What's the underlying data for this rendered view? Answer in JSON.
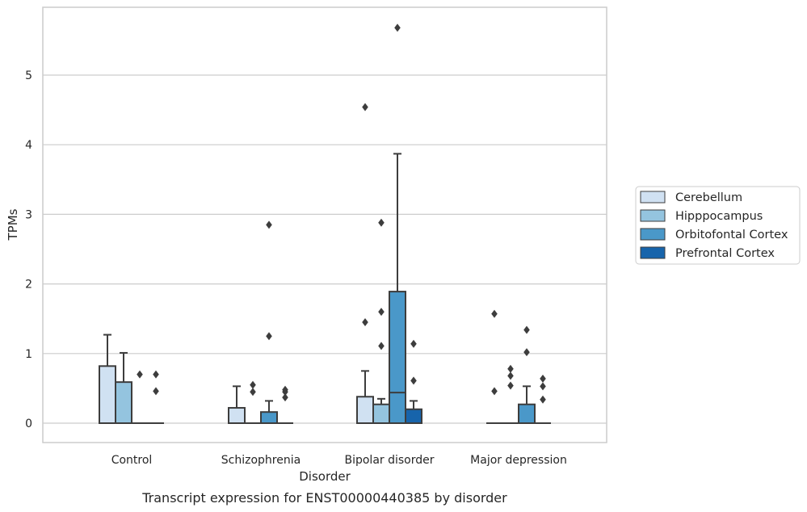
{
  "chart_data": {
    "type": "box",
    "caption": "Transcript expression for ENST00000440385 by disorder",
    "xlabel": "Disorder",
    "ylabel": "TPMs",
    "ylim": [
      -0.28,
      5.98
    ],
    "yticks": [
      0,
      1,
      2,
      3,
      4,
      5
    ],
    "grid": "horizontal",
    "legend_position": "right",
    "categories": [
      "Control",
      "Schizophrenia",
      "Bipolar disorder",
      "Major depression"
    ],
    "series": [
      {
        "name": "Cerebellum",
        "color": "#d0e1f2",
        "boxes": [
          {
            "q1": 0,
            "median": 0,
            "q3": 0.82,
            "whislo": 0,
            "whishi": 1.27,
            "fliers": []
          },
          {
            "q1": 0,
            "median": 0,
            "q3": 0.22,
            "whislo": 0,
            "whishi": 0.53,
            "fliers": []
          },
          {
            "q1": 0,
            "median": 0,
            "q3": 0.38,
            "whislo": 0,
            "whishi": 0.75,
            "fliers": [
              1.45,
              4.54
            ]
          },
          {
            "q1": 0,
            "median": 0,
            "q3": 0,
            "whislo": 0,
            "whishi": 0,
            "fliers": [
              0.46,
              1.57
            ]
          }
        ]
      },
      {
        "name": "Hipppocampus",
        "color": "#94c4df",
        "boxes": [
          {
            "q1": 0,
            "median": 0,
            "q3": 0.59,
            "whislo": 0,
            "whishi": 1.01,
            "fliers": []
          },
          {
            "q1": 0,
            "median": 0,
            "q3": 0,
            "whislo": 0,
            "whishi": 0,
            "fliers": [
              0.45,
              0.55
            ]
          },
          {
            "q1": 0,
            "median": 0,
            "q3": 0.27,
            "whislo": 0,
            "whishi": 0.35,
            "fliers": [
              1.11,
              1.6,
              2.88
            ]
          },
          {
            "q1": 0,
            "median": 0,
            "q3": 0,
            "whislo": 0,
            "whishi": 0,
            "fliers": [
              0.54,
              0.68,
              0.78
            ]
          }
        ]
      },
      {
        "name": "Orbitofontal Cortex",
        "color": "#4a98c9",
        "boxes": [
          {
            "q1": 0,
            "median": 0,
            "q3": 0,
            "whislo": 0,
            "whishi": 0,
            "fliers": [
              0.7
            ]
          },
          {
            "q1": 0,
            "median": 0,
            "q3": 0.16,
            "whislo": 0,
            "whishi": 0.32,
            "fliers": [
              1.25,
              2.85
            ]
          },
          {
            "q1": 0,
            "median": 0.44,
            "q3": 1.89,
            "whislo": 0,
            "whishi": 3.87,
            "fliers": [
              5.68
            ]
          },
          {
            "q1": 0,
            "median": 0,
            "q3": 0.27,
            "whislo": 0,
            "whishi": 0.53,
            "fliers": [
              1.02,
              1.34
            ]
          }
        ]
      },
      {
        "name": "Prefrontal Cortex",
        "color": "#1764ab",
        "boxes": [
          {
            "q1": 0,
            "median": 0,
            "q3": 0,
            "whislo": 0,
            "whishi": 0,
            "fliers": [
              0.46,
              0.7
            ]
          },
          {
            "q1": 0,
            "median": 0,
            "q3": 0,
            "whislo": 0,
            "whishi": 0,
            "fliers": [
              0.37,
              0.45,
              0.48
            ]
          },
          {
            "q1": 0,
            "median": 0,
            "q3": 0.2,
            "whislo": 0,
            "whishi": 0.32,
            "fliers": [
              0.61,
              1.14
            ]
          },
          {
            "q1": 0,
            "median": 0,
            "q3": 0,
            "whislo": 0,
            "whishi": 0,
            "fliers": [
              0.34,
              0.53,
              0.64
            ]
          }
        ]
      }
    ]
  }
}
